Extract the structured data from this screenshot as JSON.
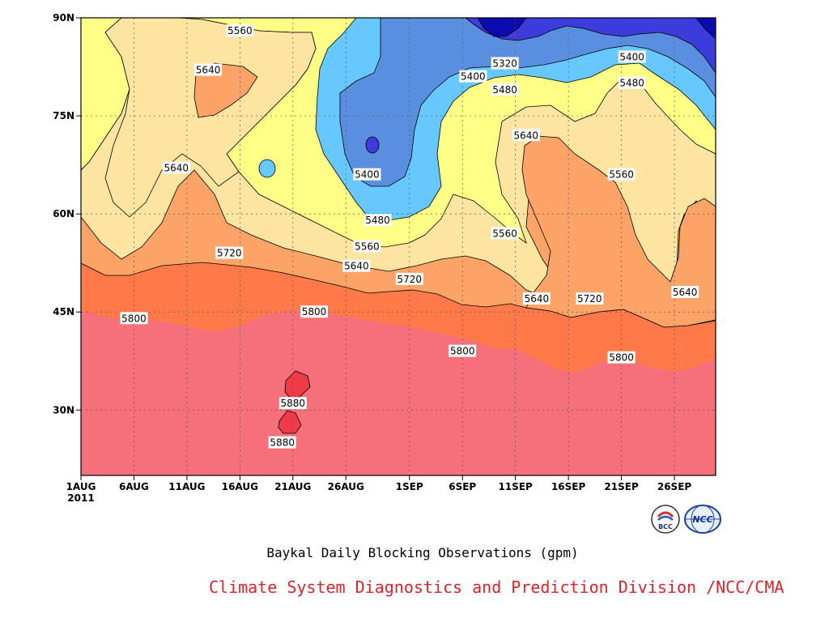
{
  "chart_data": {
    "type": "heatmap",
    "title": "Baykal Daily Blocking Observations (gpm)",
    "xlabel": "",
    "ylabel": "",
    "x_ticks": [
      "1AUG",
      "6AUG",
      "11AUG",
      "16AUG",
      "21AUG",
      "26AUG",
      "1SEP",
      "6SEP",
      "11SEP",
      "16SEP",
      "21SEP",
      "26SEP"
    ],
    "x_year": "2011",
    "y_ticks": [
      "90N",
      "75N",
      "60N",
      "45N",
      "30N"
    ],
    "y_lim_deg": [
      20,
      90
    ],
    "grid": true,
    "contour_levels": [
      5320,
      5400,
      5480,
      5560,
      5640,
      5720,
      5800,
      5880
    ],
    "fill_colors": {
      "below_5320": "#0b0bb0",
      "5320_5400": "#3c3cdc",
      "5400_5480": "#5a8fe0",
      "5480_5560": "#66c8ff",
      "5560_5640": "#ffff88",
      "5640_5720": "#fde4a0",
      "5720_5800": "#fca468",
      "5800_5880": "#ff7a48",
      "above_5880": "#f5707a",
      "max": "#ef3a48"
    },
    "contour_labels": [
      {
        "value": "5560",
        "date": "16AUG",
        "lat": "88N"
      },
      {
        "value": "5640",
        "date": "13AUG",
        "lat": "82N"
      },
      {
        "value": "5640",
        "date": "10AUG",
        "lat": "67N"
      },
      {
        "value": "5720",
        "date": "15AUG",
        "lat": "54N"
      },
      {
        "value": "5800",
        "date": "6AUG",
        "lat": "44N"
      },
      {
        "value": "5800",
        "date": "23AUG",
        "lat": "45N"
      },
      {
        "value": "5880",
        "date": "21AUG",
        "lat": "31N"
      },
      {
        "value": "5880",
        "date": "20AUG",
        "lat": "25N"
      },
      {
        "value": "5400",
        "date": "28AUG",
        "lat": "66N"
      },
      {
        "value": "5480",
        "date": "29AUG",
        "lat": "59N"
      },
      {
        "value": "5560",
        "date": "28AUG",
        "lat": "55N"
      },
      {
        "value": "5640",
        "date": "27AUG",
        "lat": "52N"
      },
      {
        "value": "5720",
        "date": "1SEP",
        "lat": "50N"
      },
      {
        "value": "5320",
        "date": "10SEP",
        "lat": "83N"
      },
      {
        "value": "5400",
        "date": "7SEP",
        "lat": "81N"
      },
      {
        "value": "5480",
        "date": "10SEP",
        "lat": "79N"
      },
      {
        "value": "5640",
        "date": "12SEP",
        "lat": "72N"
      },
      {
        "value": "5560",
        "date": "10SEP",
        "lat": "57N"
      },
      {
        "value": "5640",
        "date": "13SEP",
        "lat": "47N"
      },
      {
        "value": "5720",
        "date": "18SEP",
        "lat": "47N"
      },
      {
        "value": "5800",
        "date": "6SEP",
        "lat": "39N"
      },
      {
        "value": "5800",
        "date": "21SEP",
        "lat": "38N"
      },
      {
        "value": "5400",
        "date": "22SEP",
        "lat": "84N"
      },
      {
        "value": "5480",
        "date": "22SEP",
        "lat": "80N"
      },
      {
        "value": "5560",
        "date": "21SEP",
        "lat": "66N"
      },
      {
        "value": "5640",
        "date": "27SEP",
        "lat": "48N"
      }
    ]
  },
  "caption": {
    "title": "Baykal Daily Blocking Observations (gpm)",
    "credit": "Climate System Diagnostics and Prediction Division /NCC/CMA"
  },
  "logos": [
    {
      "icon": "bcc-logo-icon",
      "label": "BCC"
    },
    {
      "icon": "ncc-logo-icon",
      "label": "NCC"
    }
  ]
}
